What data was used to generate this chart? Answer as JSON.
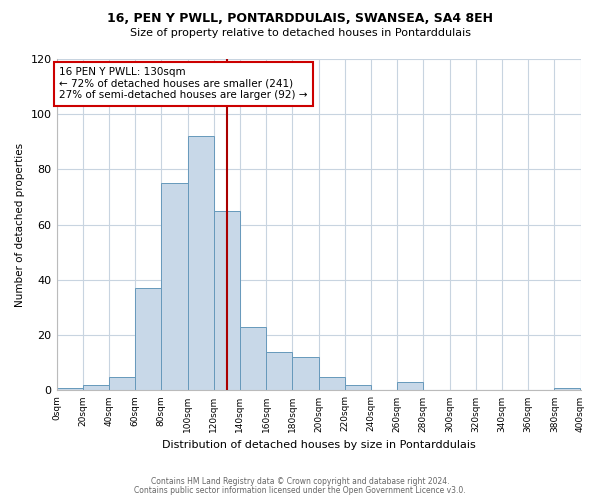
{
  "title": "16, PEN Y PWLL, PONTARDDULAIS, SWANSEA, SA4 8EH",
  "subtitle": "Size of property relative to detached houses in Pontarddulais",
  "xlabel": "Distribution of detached houses by size in Pontarddulais",
  "ylabel": "Number of detached properties",
  "bin_edges": [
    0,
    20,
    40,
    60,
    80,
    100,
    120,
    140,
    160,
    180,
    200,
    220,
    240,
    260,
    280,
    300,
    320,
    340,
    360,
    380,
    400
  ],
  "bar_heights": [
    1,
    2,
    5,
    37,
    75,
    92,
    65,
    23,
    14,
    12,
    5,
    2,
    0,
    3,
    0,
    0,
    0,
    0,
    0,
    1
  ],
  "bar_color": "#c8d8e8",
  "bar_edgecolor": "#6699bb",
  "property_size": 130,
  "vline_color": "#aa0000",
  "annotation_title": "16 PEN Y PWLL: 130sqm",
  "annotation_line1": "← 72% of detached houses are smaller (241)",
  "annotation_line2": "27% of semi-detached houses are larger (92) →",
  "annotation_box_edgecolor": "#cc0000",
  "ylim": [
    0,
    120
  ],
  "xlim": [
    0,
    400
  ],
  "footnote1": "Contains HM Land Registry data © Crown copyright and database right 2024.",
  "footnote2": "Contains public sector information licensed under the Open Government Licence v3.0.",
  "background_color": "#ffffff",
  "grid_color": "#c8d4e0"
}
